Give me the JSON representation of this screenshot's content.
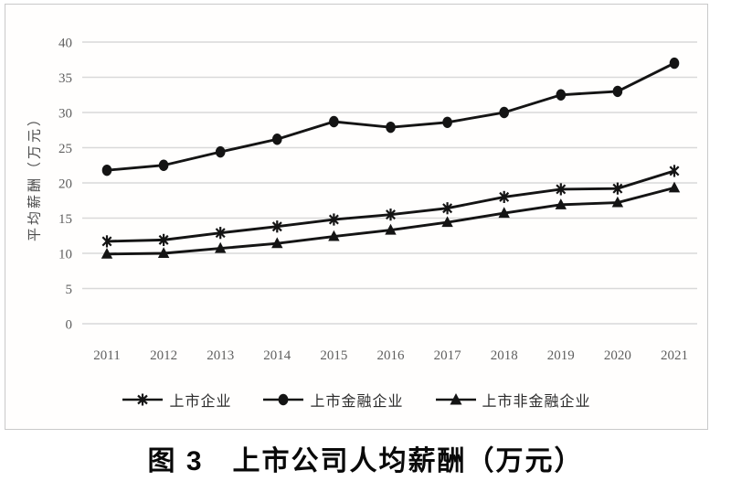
{
  "figure": {
    "caption": "图 3　上市公司人均薪酬（万元）"
  },
  "chart_data": {
    "type": "line",
    "title": "上市公司人均薪酬（万元）",
    "figure_label": "图 3",
    "xlabel": "",
    "ylabel": "平均薪酬（万元）",
    "categories": [
      "2011",
      "2012",
      "2013",
      "2014",
      "2015",
      "2016",
      "2017",
      "2018",
      "2019",
      "2020",
      "2021"
    ],
    "series": [
      {
        "name": "上市企业",
        "marker": "asterisk",
        "values": [
          11.7,
          11.9,
          12.9,
          13.8,
          14.8,
          15.5,
          16.4,
          18.0,
          19.1,
          19.2,
          21.7
        ]
      },
      {
        "name": "上市金融企业",
        "marker": "circle",
        "values": [
          21.8,
          22.5,
          24.4,
          26.2,
          28.7,
          27.9,
          28.6,
          30.0,
          32.5,
          33.0,
          37.0
        ]
      },
      {
        "name": "上市非金融企业",
        "marker": "triangle",
        "values": [
          9.9,
          10.0,
          10.7,
          11.4,
          12.4,
          13.3,
          14.4,
          15.7,
          16.9,
          17.2,
          19.3
        ]
      }
    ],
    "ylim": [
      0,
      40
    ],
    "ytick_step": 5,
    "grid": true,
    "legend_position": "bottom",
    "colors": {
      "series": "#141414",
      "grid": "#d9d9d9",
      "tick_text": "#5f5f5f",
      "frame_border": "#c9c9c9"
    }
  }
}
